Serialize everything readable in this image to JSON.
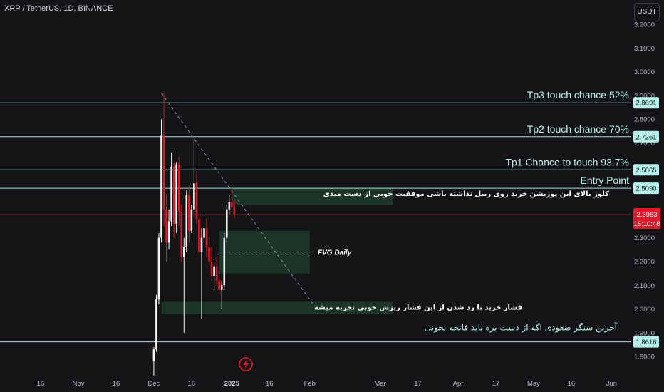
{
  "header": {
    "symbol_label": "XRP / TetherUS, 1D, BINANCE",
    "currency": "USDT"
  },
  "colors": {
    "background": "#141417",
    "up": "#f5f5f5",
    "down": "#e0192a",
    "level": "#b6f0ec",
    "zone": "#1f3a2b",
    "price_tag": "#e0192a"
  },
  "chart_data": {
    "type": "candlestick",
    "ylim": [
      1.75,
      3.25
    ],
    "y_ticks": [
      {
        "v": 3.2,
        "label": "3.2000"
      },
      {
        "v": 3.1,
        "label": "3.1000"
      },
      {
        "v": 3.0,
        "label": "3.0000"
      },
      {
        "v": 2.9,
        "label": "2.9000"
      },
      {
        "v": 2.8,
        "label": "2.8000"
      },
      {
        "v": 2.7,
        "label": "2.7000"
      },
      {
        "v": 2.6,
        "label": "2.6000"
      },
      {
        "v": 2.5,
        "label": "2.5000"
      },
      {
        "v": 2.4,
        "label": "2.4000"
      },
      {
        "v": 2.3,
        "label": "2.3000"
      },
      {
        "v": 2.2,
        "label": "2.2000"
      },
      {
        "v": 2.1,
        "label": "2.1000"
      },
      {
        "v": 2.0,
        "label": "2.0000"
      },
      {
        "v": 1.9,
        "label": "1.9000"
      },
      {
        "v": 1.8,
        "label": "1.8000"
      }
    ],
    "x_ticks": [
      {
        "d": -15,
        "label": "16"
      },
      {
        "d": 0,
        "label": "Nov"
      },
      {
        "d": 15,
        "label": "16"
      },
      {
        "d": 30,
        "label": "Dec"
      },
      {
        "d": 45,
        "label": "16"
      },
      {
        "d": 61,
        "label": "2025"
      },
      {
        "d": 76,
        "label": "16"
      },
      {
        "d": 92,
        "label": "Feb"
      },
      {
        "d": 120,
        "label": "Mar"
      },
      {
        "d": 135,
        "label": "17"
      },
      {
        "d": 151,
        "label": "Apr"
      },
      {
        "d": 166,
        "label": "17"
      },
      {
        "d": 181,
        "label": "May"
      },
      {
        "d": 196,
        "label": "16"
      },
      {
        "d": 212,
        "label": "Jun"
      }
    ],
    "candles": [
      {
        "d": 30,
        "o": 1.78,
        "h": 1.84,
        "l": 1.72,
        "c": 1.83
      },
      {
        "d": 31,
        "o": 1.83,
        "h": 2.06,
        "l": 1.82,
        "c": 2.04
      },
      {
        "d": 32,
        "o": 2.04,
        "h": 2.32,
        "l": 2.02,
        "c": 2.3
      },
      {
        "d": 33,
        "o": 2.3,
        "h": 2.8,
        "l": 2.28,
        "c": 2.73
      },
      {
        "d": 34,
        "o": 2.73,
        "h": 2.91,
        "l": 2.35,
        "c": 2.42
      },
      {
        "d": 35,
        "o": 2.42,
        "h": 2.48,
        "l": 2.2,
        "c": 2.28
      },
      {
        "d": 36,
        "o": 2.28,
        "h": 2.42,
        "l": 2.25,
        "c": 2.37
      },
      {
        "d": 37,
        "o": 2.37,
        "h": 2.66,
        "l": 2.35,
        "c": 2.6
      },
      {
        "d": 38,
        "o": 2.6,
        "h": 2.62,
        "l": 2.3,
        "c": 2.36
      },
      {
        "d": 39,
        "o": 2.36,
        "h": 2.62,
        "l": 2.32,
        "c": 2.61
      },
      {
        "d": 40,
        "o": 2.61,
        "h": 2.64,
        "l": 2.35,
        "c": 2.41
      },
      {
        "d": 41,
        "o": 2.41,
        "h": 2.44,
        "l": 2.2,
        "c": 2.22
      },
      {
        "d": 42,
        "o": 2.22,
        "h": 2.3,
        "l": 1.9,
        "c": 2.26
      },
      {
        "d": 43,
        "o": 2.26,
        "h": 2.5,
        "l": 2.24,
        "c": 2.48
      },
      {
        "d": 44,
        "o": 2.48,
        "h": 2.52,
        "l": 2.28,
        "c": 2.33
      },
      {
        "d": 45,
        "o": 2.33,
        "h": 2.44,
        "l": 2.32,
        "c": 2.42
      },
      {
        "d": 46,
        "o": 2.42,
        "h": 2.72,
        "l": 2.4,
        "c": 2.53
      },
      {
        "d": 47,
        "o": 2.53,
        "h": 2.58,
        "l": 2.36,
        "c": 2.38
      },
      {
        "d": 48,
        "o": 2.38,
        "h": 2.42,
        "l": 2.22,
        "c": 2.24
      },
      {
        "d": 49,
        "o": 2.24,
        "h": 2.34,
        "l": 1.96,
        "c": 2.3
      },
      {
        "d": 50,
        "o": 2.3,
        "h": 2.4,
        "l": 2.28,
        "c": 2.34
      },
      {
        "d": 51,
        "o": 2.34,
        "h": 2.38,
        "l": 2.22,
        "c": 2.26
      },
      {
        "d": 52,
        "o": 2.26,
        "h": 2.3,
        "l": 2.18,
        "c": 2.2
      },
      {
        "d": 53,
        "o": 2.2,
        "h": 2.26,
        "l": 2.12,
        "c": 2.14
      },
      {
        "d": 54,
        "o": 2.14,
        "h": 2.2,
        "l": 2.08,
        "c": 2.18
      },
      {
        "d": 55,
        "o": 2.18,
        "h": 2.22,
        "l": 2.1,
        "c": 2.12
      },
      {
        "d": 56,
        "o": 2.12,
        "h": 2.16,
        "l": 2.06,
        "c": 2.08
      },
      {
        "d": 57,
        "o": 2.08,
        "h": 2.12,
        "l": 2.0,
        "c": 2.1
      },
      {
        "d": 58,
        "o": 2.1,
        "h": 2.32,
        "l": 2.08,
        "c": 2.3
      },
      {
        "d": 59,
        "o": 2.3,
        "h": 2.44,
        "l": 2.28,
        "c": 2.42
      },
      {
        "d": 60,
        "o": 2.42,
        "h": 2.48,
        "l": 2.4,
        "c": 2.45
      },
      {
        "d": 61,
        "o": 2.45,
        "h": 2.51,
        "l": 2.41,
        "c": 2.43
      },
      {
        "d": 62,
        "o": 2.43,
        "h": 2.46,
        "l": 2.38,
        "c": 2.4
      }
    ],
    "levels": [
      {
        "v": 2.8691,
        "label": "2.8691",
        "text": "Tp3 touch chance 52%"
      },
      {
        "v": 2.7261,
        "label": "2.7261",
        "text": "Tp2 touch chance 70%"
      },
      {
        "v": 2.5865,
        "label": "2.5865",
        "text": "Tp1 Chance to touch  93.7%"
      },
      {
        "v": 2.509,
        "label": "2.5090",
        "text": "Entry Point"
      },
      {
        "v": 1.8616,
        "label": "1.8616",
        "text": ""
      }
    ],
    "current_price": {
      "v": 2.3983,
      "label": "2.3983",
      "countdown": "16:10:48"
    },
    "zones": [
      {
        "d0": 61,
        "d1": 125,
        "y0": 2.44,
        "y1": 2.51,
        "text": "کلوز بالای این پوزیشن خرید روی ریبل نداشته باشی موفقیت خوبی از دست میدی"
      },
      {
        "d0": 56,
        "d1": 92,
        "y0": 2.15,
        "y1": 2.33,
        "text": "FVG Daily"
      },
      {
        "d0": 33,
        "d1": 125,
        "y0": 1.98,
        "y1": 2.03,
        "text": "فشار خرید با رد شدن از این فشار ریزش خوبی تجربه میشه"
      }
    ],
    "last_support_text": "آخرین سنگر صعودی اگه از دست بره باید فاتحه بخونی",
    "trendline": {
      "d0": 33,
      "v0": 2.91,
      "d1": 94,
      "v1": 2.01
    }
  }
}
